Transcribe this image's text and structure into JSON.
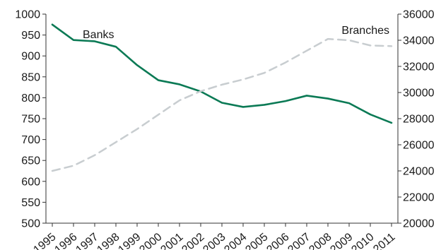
{
  "chart_data": {
    "type": "line",
    "x": [
      "1995",
      "1996",
      "1997",
      "1998",
      "1999",
      "2000",
      "2001",
      "2002",
      "2003",
      "2004",
      "2005",
      "2006",
      "2007",
      "2008",
      "2009",
      "2010",
      "2011"
    ],
    "series": [
      {
        "name": "Banks",
        "axis": "left",
        "color": "#0b7a55",
        "style": "solid",
        "values": [
          975,
          938,
          935,
          922,
          878,
          842,
          832,
          815,
          788,
          778,
          783,
          792,
          805,
          798,
          787,
          760,
          740
        ]
      },
      {
        "name": "Branches",
        "axis": "right",
        "color": "#c8cdd0",
        "style": "dashed",
        "values": [
          24000,
          24400,
          25200,
          26200,
          27200,
          28300,
          29400,
          30100,
          30600,
          31000,
          31500,
          32300,
          33200,
          34100,
          34000,
          33600,
          33550
        ]
      }
    ],
    "y_left": {
      "min": 500,
      "max": 1000,
      "ticks": [
        500,
        550,
        600,
        650,
        700,
        750,
        800,
        850,
        900,
        950,
        1000
      ]
    },
    "y_right": {
      "min": 20000,
      "max": 36000,
      "ticks": [
        20000,
        22000,
        24000,
        26000,
        28000,
        30000,
        32000,
        34000,
        36000
      ]
    },
    "title": "",
    "xlabel": "",
    "ylabel": "",
    "grid": false,
    "legend": "inline-labels"
  }
}
